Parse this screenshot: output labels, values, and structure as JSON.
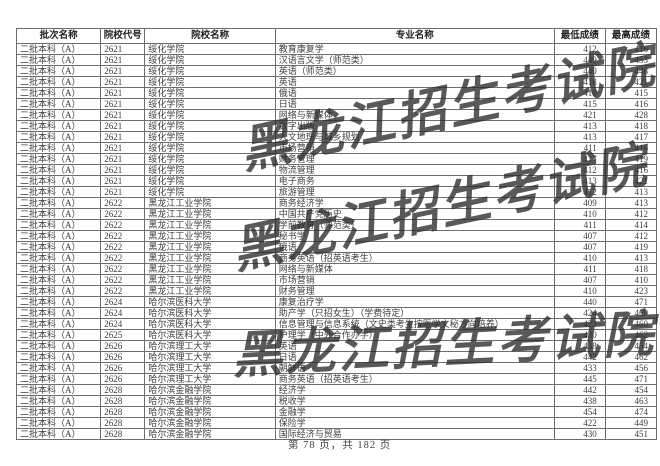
{
  "document": {
    "watermark_text": "黑龙江招生考试院",
    "footer": "第 78 页，共 182 页"
  },
  "table": {
    "columns": [
      "批次名称",
      "院校代号",
      "院校名称",
      "专业名称",
      "最低成绩",
      "最高成绩"
    ],
    "rows": [
      {
        "batch": "二批本科（A）",
        "code": "2621",
        "college": "绥化学院",
        "major": "教育康复学",
        "min": "412",
        "max": "416"
      },
      {
        "batch": "二批本科（A）",
        "code": "2621",
        "college": "绥化学院",
        "major": "汉语言文学（师范类）",
        "min": "449",
        "max": "453"
      },
      {
        "batch": "二批本科（A）",
        "code": "2621",
        "college": "绥化学院",
        "major": "英语（师范类）",
        "min": "440",
        "max": "448"
      },
      {
        "batch": "二批本科（A）",
        "code": "2621",
        "college": "绥化学院",
        "major": "英语",
        "min": "418",
        "max": "421"
      },
      {
        "batch": "二批本科（A）",
        "code": "2621",
        "college": "绥化学院",
        "major": "俄语",
        "min": "410",
        "max": "415"
      },
      {
        "batch": "二批本科（A）",
        "code": "2621",
        "college": "绥化学院",
        "major": "日语",
        "min": "415",
        "max": "416"
      },
      {
        "batch": "二批本科（A）",
        "code": "2621",
        "college": "绥化学院",
        "major": "网络与新媒体",
        "min": "421",
        "max": "428"
      },
      {
        "batch": "二批本科（A）",
        "code": "2621",
        "college": "绥化学院",
        "major": "数字出版",
        "min": "413",
        "max": "418"
      },
      {
        "batch": "二批本科（A）",
        "code": "2621",
        "college": "绥化学院",
        "major": "人文地理与城乡规划",
        "min": "413",
        "max": "417"
      },
      {
        "batch": "二批本科（A）",
        "code": "2621",
        "college": "绥化学院",
        "major": "市场营销",
        "min": "411",
        "max": "416"
      },
      {
        "batch": "二批本科（A）",
        "code": "2621",
        "college": "绥化学院",
        "major": "财务管理",
        "min": "417",
        "max": "419"
      },
      {
        "batch": "二批本科（A）",
        "code": "2621",
        "college": "绥化学院",
        "major": "物流管理",
        "min": "412",
        "max": "416"
      },
      {
        "batch": "二批本科（A）",
        "code": "2621",
        "college": "绥化学院",
        "major": "电子商务",
        "min": "413",
        "max": "421"
      },
      {
        "batch": "二批本科（A）",
        "code": "2621",
        "college": "绥化学院",
        "major": "旅游管理",
        "min": "412",
        "max": "413"
      },
      {
        "batch": "二批本科（A）",
        "code": "2622",
        "college": "黑龙江工业学院",
        "major": "商务经济学",
        "min": "409",
        "max": "413"
      },
      {
        "batch": "二批本科（A）",
        "code": "2622",
        "college": "黑龙江工业学院",
        "major": "中国共产党历史",
        "min": "410",
        "max": "412"
      },
      {
        "batch": "二批本科（A）",
        "code": "2622",
        "college": "黑龙江工业学院",
        "major": "学前教育（师范类）",
        "min": "411",
        "max": "414"
      },
      {
        "batch": "二批本科（A）",
        "code": "2622",
        "college": "黑龙江工业学院",
        "major": "秘书学",
        "min": "407",
        "max": "412"
      },
      {
        "batch": "二批本科（A）",
        "code": "2622",
        "college": "黑龙江工业学院",
        "major": "俄语",
        "min": "407",
        "max": "419"
      },
      {
        "batch": "二批本科（A）",
        "code": "2622",
        "college": "黑龙江工业学院",
        "major": "商务英语（招英语考生）",
        "min": "410",
        "max": "413"
      },
      {
        "batch": "二批本科（A）",
        "code": "2622",
        "college": "黑龙江工业学院",
        "major": "网络与新媒体",
        "min": "411",
        "max": "418"
      },
      {
        "batch": "二批本科（A）",
        "code": "2622",
        "college": "黑龙江工业学院",
        "major": "市场营销",
        "min": "407",
        "max": "410"
      },
      {
        "batch": "二批本科（A）",
        "code": "2622",
        "college": "黑龙江工业学院",
        "major": "财务管理",
        "min": "410",
        "max": "423"
      },
      {
        "batch": "二批本科（A）",
        "code": "2624",
        "college": "哈尔滨医科大学",
        "major": "康复治疗学",
        "min": "440",
        "max": "471"
      },
      {
        "batch": "二批本科（A）",
        "code": "2624",
        "college": "哈尔滨医科大学",
        "major": "助产学（只招女生）（学费待定）",
        "min": "424",
        "max": "469"
      },
      {
        "batch": "二批本科（A）",
        "code": "2624",
        "college": "哈尔滨医科大学",
        "major": "信息管理与信息系统（文史类考生按医学文秘方向培养）",
        "min": "423",
        "max": "460"
      },
      {
        "batch": "二批本科（A）",
        "code": "2625",
        "college": "哈尔滨医科大学",
        "major": "护理学（中外合作办学）",
        "min": "430",
        "max": "462"
      },
      {
        "batch": "二批本科（A）",
        "code": "2626",
        "college": "哈尔滨理工大学",
        "major": "英语",
        "min": "438",
        "max": "454"
      },
      {
        "batch": "二批本科（A）",
        "code": "2626",
        "college": "哈尔滨理工大学",
        "major": "日语",
        "min": "442",
        "max": "462"
      },
      {
        "batch": "二批本科（A）",
        "code": "2626",
        "college": "哈尔滨理工大学",
        "major": "朝鲜语",
        "min": "433",
        "max": "456"
      },
      {
        "batch": "二批本科（A）",
        "code": "2626",
        "college": "哈尔滨理工大学",
        "major": "商务英语（招英语考生）",
        "min": "445",
        "max": "471"
      },
      {
        "batch": "二批本科（A）",
        "code": "2628",
        "college": "哈尔滨金融学院",
        "major": "经济学",
        "min": "442",
        "max": "454"
      },
      {
        "batch": "二批本科（A）",
        "code": "2628",
        "college": "哈尔滨金融学院",
        "major": "税收学",
        "min": "438",
        "max": "463"
      },
      {
        "batch": "二批本科（A）",
        "code": "2628",
        "college": "哈尔滨金融学院",
        "major": "金融学",
        "min": "454",
        "max": "474"
      },
      {
        "batch": "二批本科（A）",
        "code": "2628",
        "college": "哈尔滨金融学院",
        "major": "保险学",
        "min": "422",
        "max": "449"
      },
      {
        "batch": "二批本科（A）",
        "code": "2628",
        "college": "哈尔滨金融学院",
        "major": "国际经济与贸易",
        "min": "430",
        "max": "451"
      }
    ]
  }
}
